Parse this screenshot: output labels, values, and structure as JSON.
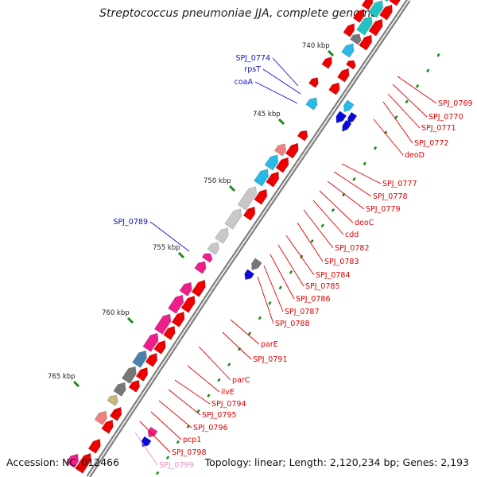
{
  "title": "Streptococcus pneumoniae JJA, complete genome",
  "footer": {
    "accession": "Accession: NC_012466",
    "summary": "Topology: linear; Length: 2,120,234 bp; Genes: 2,193"
  },
  "ruler": [
    "740 kbp",
    "745 kbp",
    "750 kbp",
    "755 kbp",
    "760 kbp",
    "765 kbp"
  ],
  "colors": {
    "red": "#ee0000",
    "blue": "#0a0adb",
    "cyan": "#29b9e6",
    "teal": "#22c3c3",
    "gray": "#777777",
    "lightgray": "#c8c8c8",
    "pink": "#ee1f8b",
    "salmon": "#f08080",
    "olive": "#c7b683",
    "steel": "#4a7fb0",
    "labelRed": "#e00000",
    "labelBlue": "#1010c8",
    "labelPink": "#f08cc0",
    "tick": "#1a8a1a",
    "axis": "#808080"
  },
  "leftLabels": [
    "SPJ_0774",
    "rpsT",
    "coaA",
    "SPJ_0789"
  ],
  "rightLabels": [
    "SPJ_0769",
    "SPJ_0770",
    "SPJ_0771",
    "SPJ_0772",
    "deoD",
    "SPJ_0777",
    "SPJ_0778",
    "SPJ_0779",
    "deoC",
    "cdd",
    "SPJ_0782",
    "SPJ_0783",
    "SPJ_0784",
    "SPJ_0785",
    "SPJ_0786",
    "SPJ_0787",
    "SPJ_0788",
    "parE",
    "SPJ_0791",
    "parC",
    "ilvE",
    "SPJ_0794",
    "SPJ_0795",
    "SPJ_0796",
    "pcp1",
    "SPJ_0798",
    "SPJ_0799"
  ]
}
